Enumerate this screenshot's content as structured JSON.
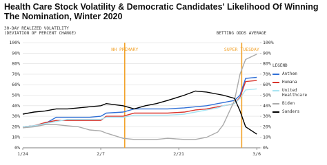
{
  "chart_data": {
    "type": "line",
    "title": "Health Care Stock Volatility & Democratic Candidates' Likelihood Of Winning The Nomination, Winter 2020",
    "y_label": "30-DAY REALIZED VOLATILITY (DEVIATION OF PERCENT CHANGE)",
    "y2_label": "BETTING ODDS AVERAGE",
    "legend_title": "LEGEND",
    "x": [
      0,
      2,
      4,
      6,
      8,
      10,
      12,
      14,
      15,
      18,
      20,
      22,
      24,
      26,
      29,
      31,
      33,
      35,
      36,
      38,
      39,
      40,
      42
    ],
    "xlim": [
      0,
      42.6
    ],
    "xticks": [
      {
        "value": 0,
        "label": "1/24"
      },
      {
        "value": 14,
        "label": "2/7"
      },
      {
        "value": 28,
        "label": "2/21"
      },
      {
        "value": 42,
        "label": "3/6"
      }
    ],
    "ylim": [
      0,
      100
    ],
    "yticks": [
      {
        "value": 0,
        "label": "0%"
      },
      {
        "value": 10,
        "label": "10%"
      },
      {
        "value": 20,
        "label": "20%"
      },
      {
        "value": 30,
        "label": "30%"
      },
      {
        "value": 40,
        "label": "40%"
      },
      {
        "value": 50,
        "label": "50%"
      },
      {
        "value": 60,
        "label": "60%"
      },
      {
        "value": 70,
        "label": "70%"
      },
      {
        "value": 80,
        "label": "80%"
      },
      {
        "value": 90,
        "label": "90%"
      },
      {
        "value": 100,
        "label": "100%"
      }
    ],
    "y2lim": [
      0,
      100
    ],
    "y2ticks": [
      {
        "value": 0,
        "label": "0%"
      },
      {
        "value": 10,
        "label": "10%"
      },
      {
        "value": 20,
        "label": "20%"
      },
      {
        "value": 30,
        "label": "30%"
      },
      {
        "value": 40,
        "label": "40%"
      },
      {
        "value": 50,
        "label": "50%"
      },
      {
        "value": 60,
        "label": "60%"
      },
      {
        "value": 70,
        "label": "70%"
      },
      {
        "value": 80,
        "label": "80%"
      },
      {
        "value": 90,
        "label": "90%"
      },
      {
        "value": 100,
        "label": "100%"
      }
    ],
    "grid": true,
    "annotations": [
      {
        "text": "NH PRIMARY",
        "x": 18.3,
        "color": "#f2a22a"
      },
      {
        "text": "SUPER TUESDAY",
        "x": 39.3,
        "color": "#f2a22a"
      }
    ],
    "series": [
      {
        "name": "Anthem",
        "color": "#2f6fd6",
        "values": [
          20,
          21,
          23,
          29,
          29,
          29,
          29,
          30,
          33,
          34,
          37,
          37,
          37,
          37,
          38,
          39,
          40,
          42,
          43,
          45,
          50,
          66,
          67
        ]
      },
      {
        "name": "Humana",
        "color": "#d9342b",
        "values": [
          20,
          21,
          24,
          26,
          26,
          26,
          26,
          26,
          30,
          30,
          33,
          33,
          33,
          33,
          34,
          36,
          37,
          39,
          40,
          42,
          48,
          63,
          64
        ]
      },
      {
        "name": "United Healthcare",
        "color": "#a8e4f2",
        "values": [
          20,
          21,
          23,
          25,
          27,
          27,
          27,
          27,
          29,
          29,
          31,
          31,
          31,
          31,
          32,
          34,
          36,
          38,
          40,
          42,
          47,
          55,
          56
        ]
      },
      {
        "name": "Biden",
        "color": "#aaaaaa",
        "axis": "y2",
        "values": [
          19,
          20,
          22,
          22,
          21,
          20,
          17,
          16,
          14,
          9,
          8,
          8,
          8,
          9,
          8,
          8,
          10,
          15,
          22,
          45,
          70,
          84,
          89
        ]
      },
      {
        "name": "Sanders",
        "color": "#000000",
        "axis": "y2",
        "values": [
          32,
          34,
          35,
          37,
          37,
          38,
          39,
          40,
          42,
          40,
          37,
          40,
          42,
          45,
          50,
          54,
          53,
          51,
          50,
          47,
          35,
          20,
          13
        ]
      }
    ]
  }
}
